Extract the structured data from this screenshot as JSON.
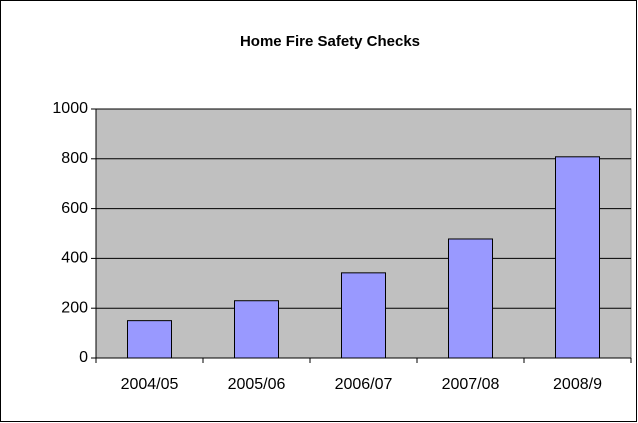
{
  "chart_data": {
    "type": "bar",
    "title": "Home Fire Safety Checks",
    "categories": [
      "2004/05",
      "2005/06",
      "2006/07",
      "2007/08",
      "2008/9"
    ],
    "values": [
      150,
      230,
      342,
      478,
      808
    ],
    "color": "#9999ff",
    "ylim": [
      0,
      1000
    ],
    "yticks": [
      0,
      200,
      400,
      600,
      800,
      1000
    ],
    "grid": true
  }
}
